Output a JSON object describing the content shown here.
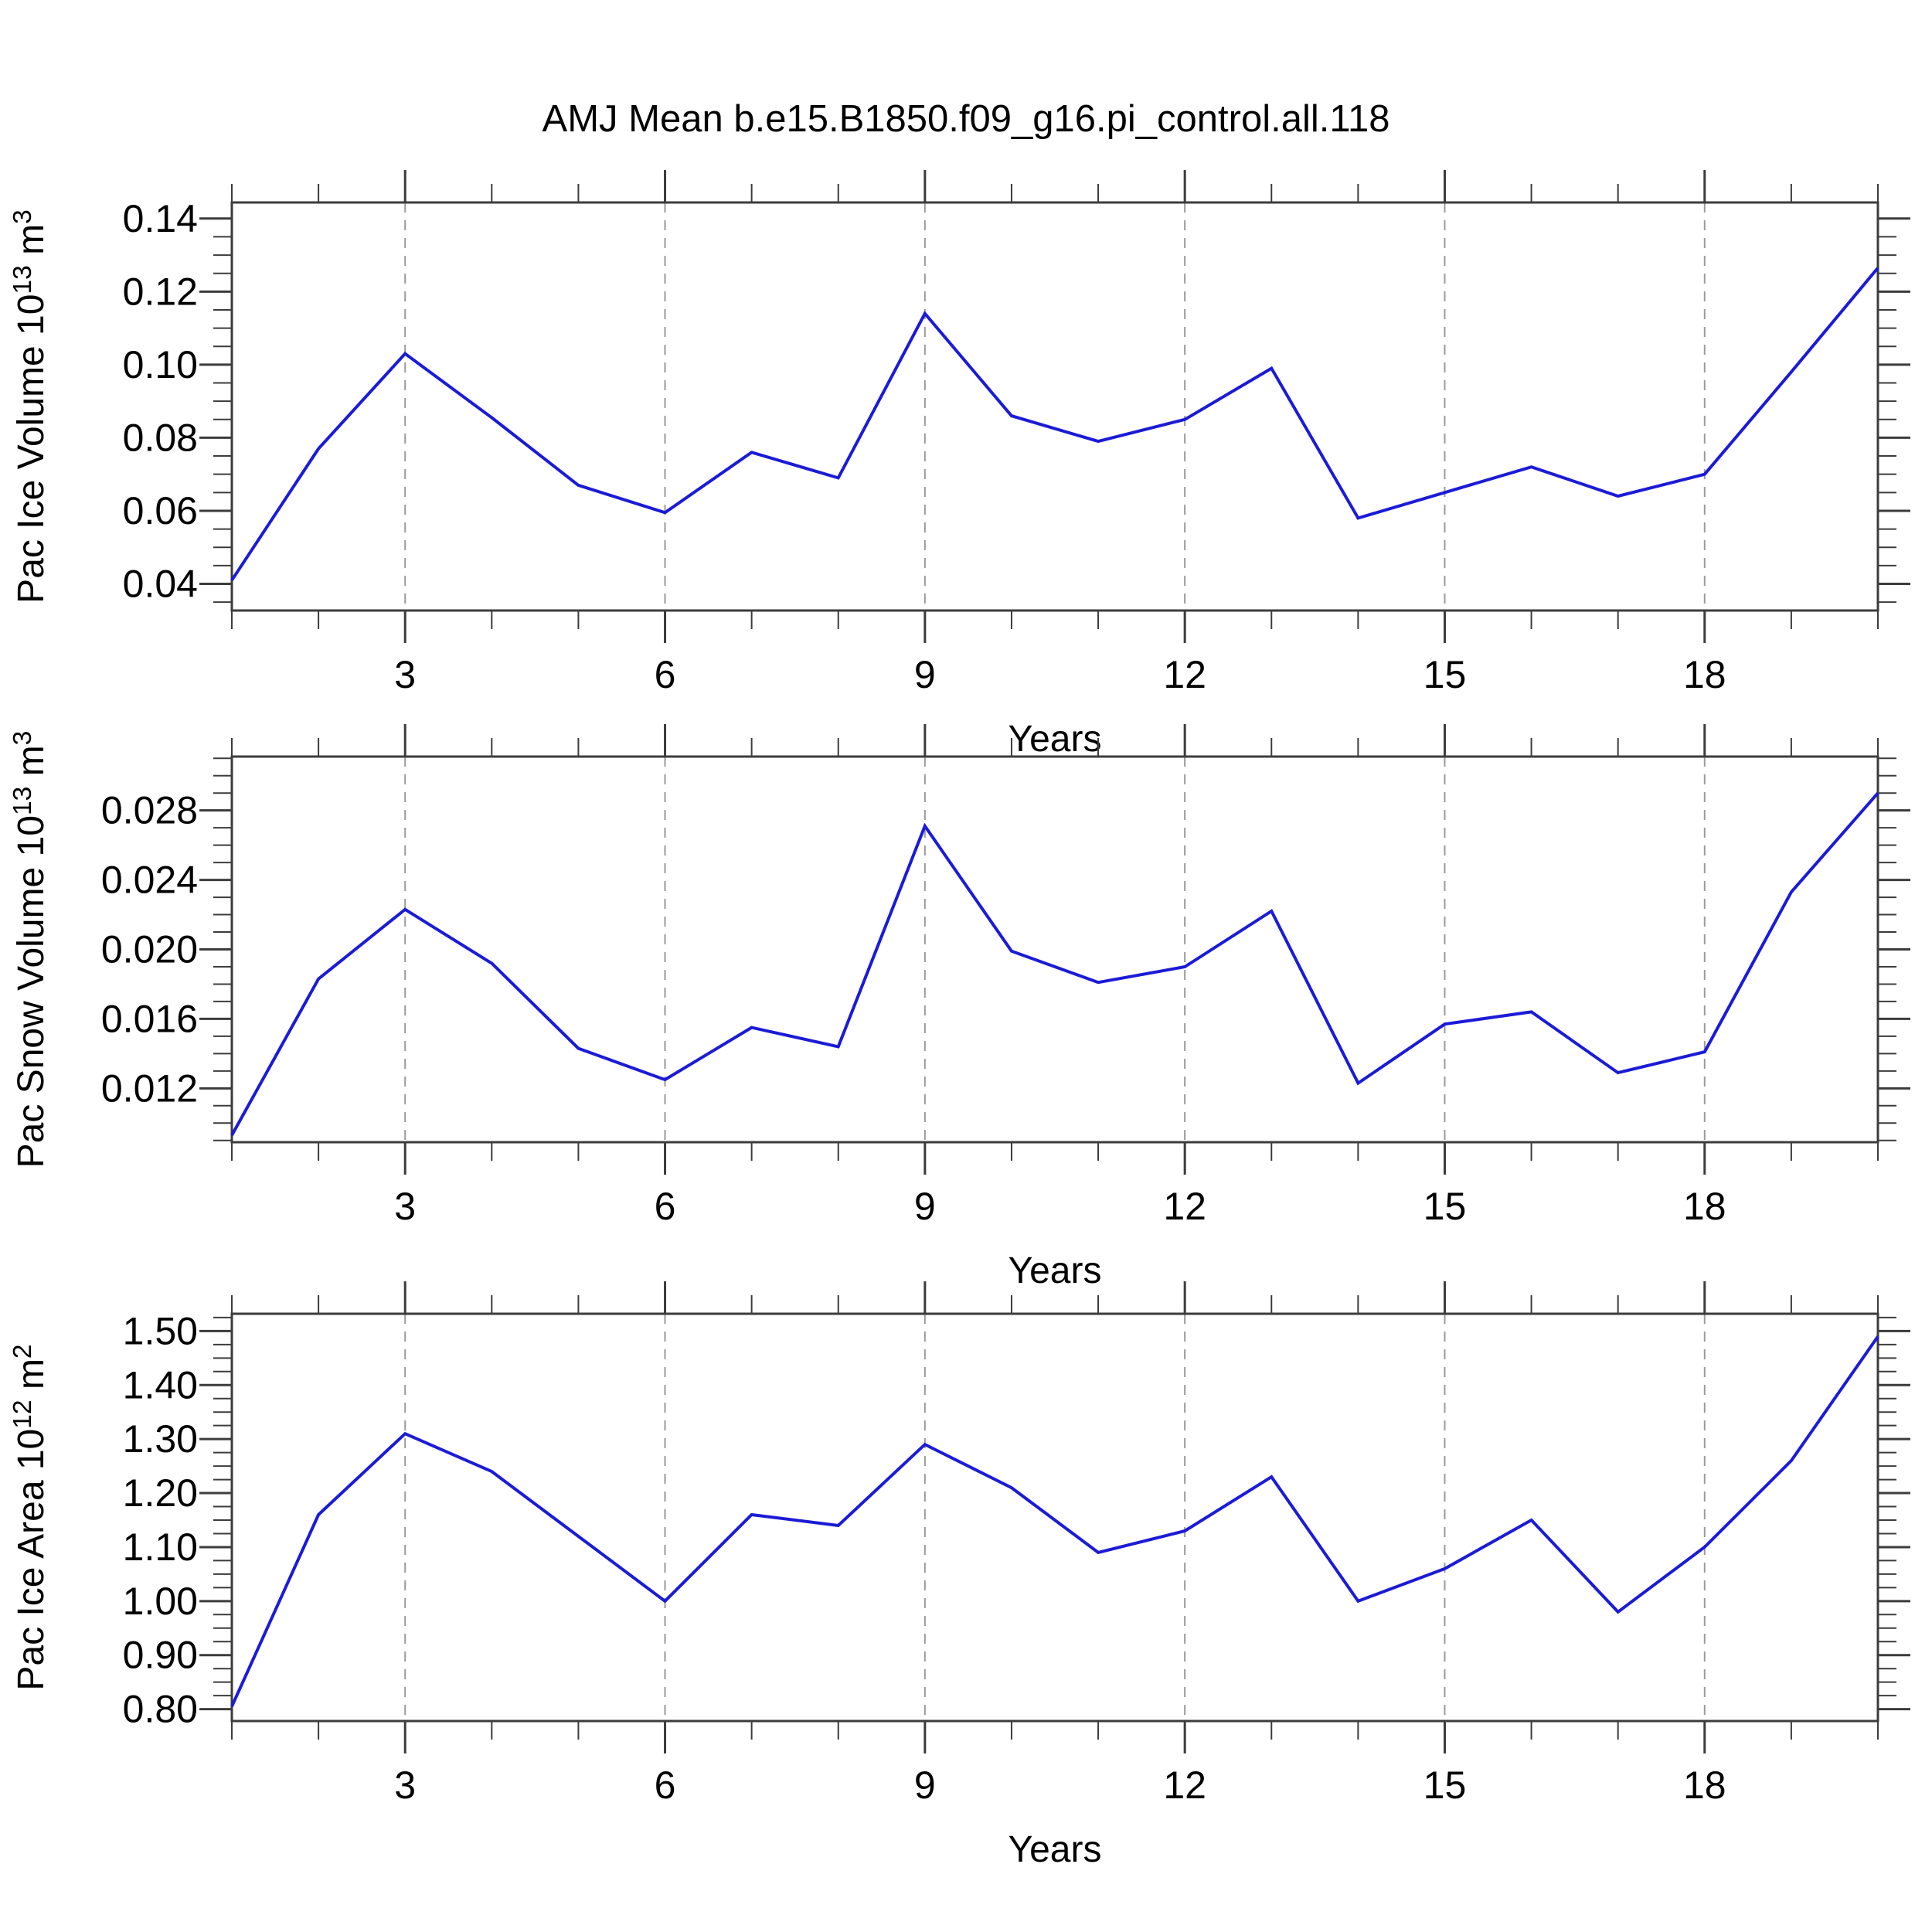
{
  "title": "AMJ Mean b.e15.B1850.f09_g16.pi_control.all.118",
  "style": {
    "line_color": "#1b1bd7",
    "grid_color": "#9a9a9a",
    "frame_color": "#3c3c3c",
    "text_color": "#000000"
  },
  "chart_data": [
    {
      "type": "line",
      "name": "pac-ice-volume",
      "ylabel_text": "Pac Ice Volume 10^13 m^3",
      "ylabel_parts": [
        {
          "t": "Pac Ice Volume 10"
        },
        {
          "t": "13",
          "sup": true
        },
        {
          "t": " m"
        },
        {
          "t": "3",
          "sup": true
        }
      ],
      "xlabel": "Years",
      "x": [
        1,
        2,
        3,
        4,
        5,
        6,
        7,
        8,
        9,
        10,
        11,
        12,
        13,
        14,
        15,
        16,
        17,
        18,
        19,
        20
      ],
      "values": [
        0.041,
        0.077,
        0.103,
        0.0855,
        0.067,
        0.0595,
        0.076,
        0.069,
        0.114,
        0.086,
        0.079,
        0.085,
        0.099,
        0.058,
        0.065,
        0.072,
        0.064,
        0.07,
        0.098,
        0.1265
      ],
      "xlim": [
        1,
        20
      ],
      "ylim": [
        0.0327,
        0.1444
      ],
      "xticks": [
        {
          "v": 3,
          "label": "3"
        },
        {
          "v": 6,
          "label": "6"
        },
        {
          "v": 9,
          "label": "9"
        },
        {
          "v": 12,
          "label": "12"
        },
        {
          "v": 15,
          "label": "15"
        },
        {
          "v": 18,
          "label": "18"
        }
      ],
      "x_minor_step": 1,
      "yticks": [
        {
          "v": 0.04,
          "label": "0.04"
        },
        {
          "v": 0.06,
          "label": "0.06"
        },
        {
          "v": 0.08,
          "label": "0.08"
        },
        {
          "v": 0.1,
          "label": "0.10"
        },
        {
          "v": 0.12,
          "label": "0.12"
        },
        {
          "v": 0.14,
          "label": "0.14"
        }
      ],
      "y_minor_step": 0.005,
      "grid_at": [
        3,
        6,
        9,
        12,
        15,
        18
      ],
      "grid_style": "dashed-vertical",
      "legend": "none"
    },
    {
      "type": "line",
      "name": "pac-snow-volume",
      "ylabel_text": "Pac Snow Volume 10^13 m^3",
      "ylabel_parts": [
        {
          "t": "Pac Snow Volume 10"
        },
        {
          "t": "13",
          "sup": true
        },
        {
          "t": " m"
        },
        {
          "t": "3",
          "sup": true
        }
      ],
      "xlabel": "Years",
      "x": [
        1,
        2,
        3,
        4,
        5,
        6,
        7,
        8,
        9,
        10,
        11,
        12,
        13,
        14,
        15,
        16,
        17,
        18,
        19,
        20
      ],
      "values": [
        0.0093,
        0.0183,
        0.0223,
        0.0192,
        0.0143,
        0.0125,
        0.0155,
        0.0144,
        0.0271,
        0.0199,
        0.0181,
        0.019,
        0.0222,
        0.0123,
        0.0157,
        0.0164,
        0.0129,
        0.0141,
        0.0233,
        0.029
      ],
      "xlim": [
        1,
        20
      ],
      "ylim": [
        0.0089,
        0.0311
      ],
      "xticks": [
        {
          "v": 3,
          "label": "3"
        },
        {
          "v": 6,
          "label": "6"
        },
        {
          "v": 9,
          "label": "9"
        },
        {
          "v": 12,
          "label": "12"
        },
        {
          "v": 15,
          "label": "15"
        },
        {
          "v": 18,
          "label": "18"
        }
      ],
      "x_minor_step": 1,
      "yticks": [
        {
          "v": 0.012,
          "label": "0.012"
        },
        {
          "v": 0.016,
          "label": "0.016"
        },
        {
          "v": 0.02,
          "label": "0.020"
        },
        {
          "v": 0.024,
          "label": "0.024"
        },
        {
          "v": 0.028,
          "label": "0.028"
        }
      ],
      "y_minor_step": 0.001,
      "grid_at": [
        3,
        6,
        9,
        12,
        15,
        18
      ],
      "grid_style": "dashed-vertical",
      "legend": "none"
    },
    {
      "type": "line",
      "name": "pac-ice-area",
      "ylabel_text": "Pac Ice Area 10^12 m^2",
      "ylabel_parts": [
        {
          "t": "Pac Ice Area 10"
        },
        {
          "t": "12",
          "sup": true
        },
        {
          "t": " m"
        },
        {
          "t": "2",
          "sup": true
        }
      ],
      "xlabel": "Years",
      "x": [
        1,
        2,
        3,
        4,
        5,
        6,
        7,
        8,
        9,
        10,
        11,
        12,
        13,
        14,
        15,
        16,
        17,
        18,
        19,
        20
      ],
      "values": [
        0.805,
        1.16,
        1.31,
        1.24,
        1.12,
        1.0,
        1.16,
        1.14,
        1.29,
        1.21,
        1.09,
        1.13,
        1.23,
        1.0,
        1.06,
        1.15,
        0.98,
        1.1,
        1.26,
        1.49
      ],
      "xlim": [
        1,
        20
      ],
      "ylim": [
        0.778,
        1.532
      ],
      "xticks": [
        {
          "v": 3,
          "label": "3"
        },
        {
          "v": 6,
          "label": "6"
        },
        {
          "v": 9,
          "label": "9"
        },
        {
          "v": 12,
          "label": "12"
        },
        {
          "v": 15,
          "label": "15"
        },
        {
          "v": 18,
          "label": "18"
        }
      ],
      "x_minor_step": 1,
      "yticks": [
        {
          "v": 0.8,
          "label": "0.80"
        },
        {
          "v": 0.9,
          "label": "0.90"
        },
        {
          "v": 1.0,
          "label": "1.00"
        },
        {
          "v": 1.1,
          "label": "1.10"
        },
        {
          "v": 1.2,
          "label": "1.20"
        },
        {
          "v": 1.3,
          "label": "1.30"
        },
        {
          "v": 1.4,
          "label": "1.40"
        },
        {
          "v": 1.5,
          "label": "1.50"
        }
      ],
      "y_minor_step": 0.025,
      "grid_at": [
        3,
        6,
        9,
        12,
        15,
        18
      ],
      "grid_style": "dashed-vertical",
      "legend": "none"
    }
  ]
}
